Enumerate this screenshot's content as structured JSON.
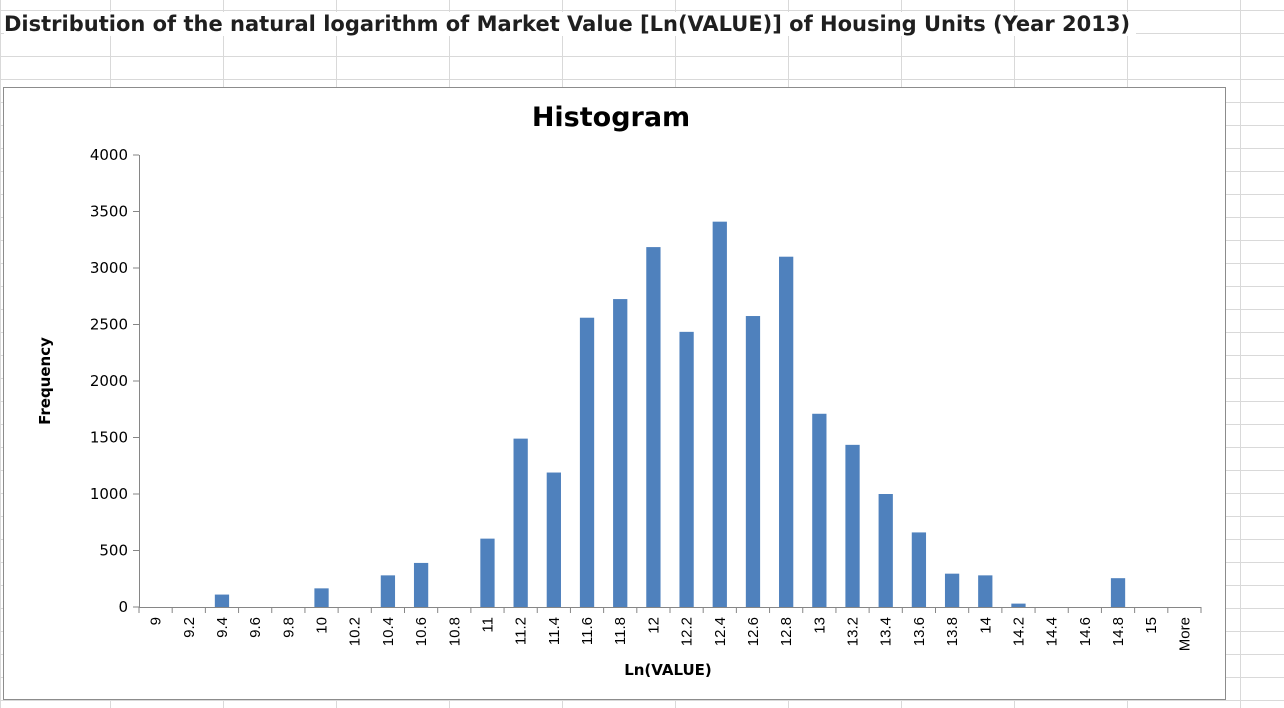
{
  "sheet": {
    "title": "Distribution of the natural logarithm of Market Value [Ln(VALUE)] of Housing Units (Year 2013)"
  },
  "colors": {
    "bar": "#4f81bd",
    "gridline": "#d9d9d9",
    "chart_border": "#8c8c8c"
  },
  "chart_data": {
    "type": "bar",
    "title": "Histogram",
    "xlabel": "Ln(VALUE)",
    "ylabel": "Frequency",
    "ylim": [
      0,
      4000
    ],
    "yticks": [
      0,
      500,
      1000,
      1500,
      2000,
      2500,
      3000,
      3500,
      4000
    ],
    "grid": false,
    "legend": "none",
    "categories": [
      "9",
      "9.2",
      "9.4",
      "9.6",
      "9.8",
      "10",
      "10.2",
      "10.4",
      "10.6",
      "10.8",
      "11",
      "11.2",
      "11.4",
      "11.6",
      "11.8",
      "12",
      "12.2",
      "12.4",
      "12.6",
      "12.8",
      "13",
      "13.2",
      "13.4",
      "13.6",
      "13.8",
      "14",
      "14.2",
      "14.4",
      "14.6",
      "14.8",
      "15",
      "More"
    ],
    "values": [
      0,
      0,
      110,
      0,
      0,
      165,
      0,
      280,
      390,
      0,
      605,
      1490,
      1190,
      2560,
      2725,
      3185,
      2435,
      3410,
      2575,
      3100,
      1710,
      1435,
      1000,
      660,
      295,
      280,
      30,
      0,
      0,
      255,
      0,
      0
    ]
  }
}
